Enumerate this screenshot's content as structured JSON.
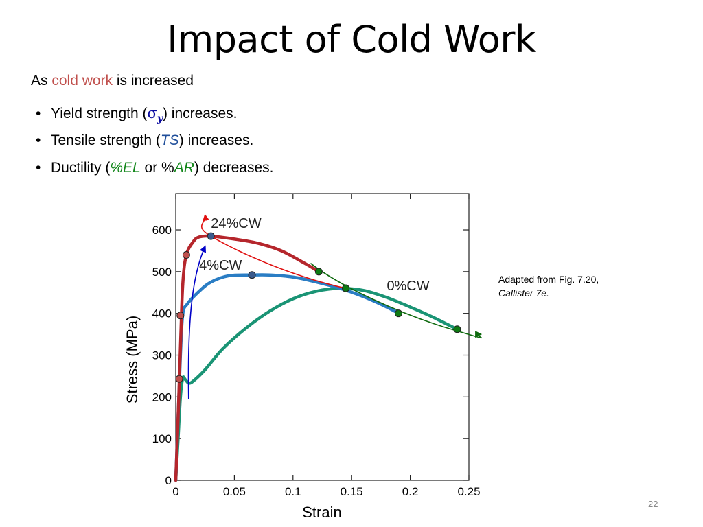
{
  "slide": {
    "title": "Impact of Cold Work",
    "intro_prefix": "As ",
    "intro_highlight": "cold work",
    "intro_suffix": " is increased",
    "bullet_dot": "•",
    "bullet1": {
      "prefix": "Yield strength (",
      "symbol": "σ",
      "subscript": "y",
      "suffix": ") increases."
    },
    "bullet2": {
      "prefix": "Tensile strength (",
      "symbol": "TS",
      "suffix": ") increases."
    },
    "bullet3": {
      "prefix": "Ductility (",
      "sym1": "%EL",
      "middle_pre": " or %",
      "sym2": "AR",
      "suffix": ") decreases."
    },
    "caption_line1": "Adapted from Fig. 7.20,",
    "caption_line2": "Callister 7e.",
    "page_number": "22"
  },
  "chart_data": {
    "type": "line",
    "title": "",
    "xlabel": "Strain",
    "ylabel": "Stress (MPa)",
    "xlim": [
      0,
      0.25
    ],
    "ylim": [
      0,
      700
    ],
    "x_ticks": [
      0,
      0.05,
      0.1,
      0.15,
      0.2,
      0.25
    ],
    "x_tick_labels": [
      "0",
      "0.05",
      "0.1",
      "0.15",
      "0.2",
      "0.25"
    ],
    "y_ticks": [
      0,
      100,
      200,
      300,
      400,
      500,
      600
    ],
    "y_tick_labels": [
      "0",
      "100",
      "200",
      "300",
      "400",
      "500",
      "600"
    ],
    "grid": false,
    "series": [
      {
        "name": "0%CW",
        "color": "#1a9475",
        "points": [
          [
            0,
            0
          ],
          [
            0.002,
            100
          ],
          [
            0.004,
            200
          ],
          [
            0.006,
            245
          ],
          [
            0.008,
            242
          ],
          [
            0.011,
            233
          ],
          [
            0.015,
            238
          ],
          [
            0.025,
            265
          ],
          [
            0.04,
            315
          ],
          [
            0.06,
            365
          ],
          [
            0.08,
            405
          ],
          [
            0.1,
            435
          ],
          [
            0.12,
            453
          ],
          [
            0.14,
            460
          ],
          [
            0.16,
            455
          ],
          [
            0.18,
            438
          ],
          [
            0.2,
            415
          ],
          [
            0.22,
            390
          ],
          [
            0.24,
            362
          ]
        ]
      },
      {
        "name": "4%CW",
        "color": "#2a7dc4",
        "points": [
          [
            0,
            0
          ],
          [
            0.002,
            150
          ],
          [
            0.004,
            300
          ],
          [
            0.006,
            398
          ],
          [
            0.01,
            423
          ],
          [
            0.02,
            453
          ],
          [
            0.03,
            475
          ],
          [
            0.045,
            490
          ],
          [
            0.065,
            492
          ],
          [
            0.08,
            492
          ],
          [
            0.1,
            487
          ],
          [
            0.12,
            475
          ],
          [
            0.14,
            460
          ],
          [
            0.16,
            440
          ],
          [
            0.18,
            415
          ],
          [
            0.19,
            400
          ]
        ]
      },
      {
        "name": "24%CW",
        "color": "#b5262c",
        "points": [
          [
            0,
            0
          ],
          [
            0.002,
            150
          ],
          [
            0.004,
            320
          ],
          [
            0.006,
            470
          ],
          [
            0.009,
            540
          ],
          [
            0.015,
            572
          ],
          [
            0.02,
            583
          ],
          [
            0.03,
            585
          ],
          [
            0.05,
            578
          ],
          [
            0.07,
            568
          ],
          [
            0.09,
            550
          ],
          [
            0.11,
            520
          ],
          [
            0.122,
            500
          ]
        ]
      }
    ],
    "labels": [
      {
        "text": "24%CW",
        "x": 0.03,
        "y": 605
      },
      {
        "text": "4%CW",
        "x": 0.02,
        "y": 505
      },
      {
        "text": "0%CW",
        "x": 0.18,
        "y": 455
      }
    ],
    "markers": {
      "yield_points": {
        "color": "#c0504d",
        "points": [
          [
            0.003,
            243
          ],
          [
            0.004,
            395
          ],
          [
            0.009,
            540
          ]
        ]
      },
      "tensile_points": {
        "color": "#3a5a8c",
        "points": [
          [
            0.065,
            492
          ],
          [
            0.03,
            585
          ],
          [
            0.145,
            460
          ]
        ]
      },
      "fracture_points": {
        "color": "#0e7a13",
        "points": [
          [
            0.122,
            500
          ],
          [
            0.145,
            460
          ],
          [
            0.19,
            400
          ],
          [
            0.24,
            362
          ]
        ]
      }
    },
    "annotations": {
      "blue_arrow": {
        "color": "#0000c8",
        "from": [
          0.011,
          195
        ],
        "to": [
          0.025,
          560
        ]
      },
      "red_arrow": {
        "color": "#e01010",
        "from": [
          0.145,
          460
        ],
        "to": [
          0.025,
          635
        ]
      },
      "green_arrow": {
        "color": "#0e6a0e",
        "from": [
          0.115,
          520
        ],
        "to": [
          0.26,
          350
        ]
      }
    }
  }
}
